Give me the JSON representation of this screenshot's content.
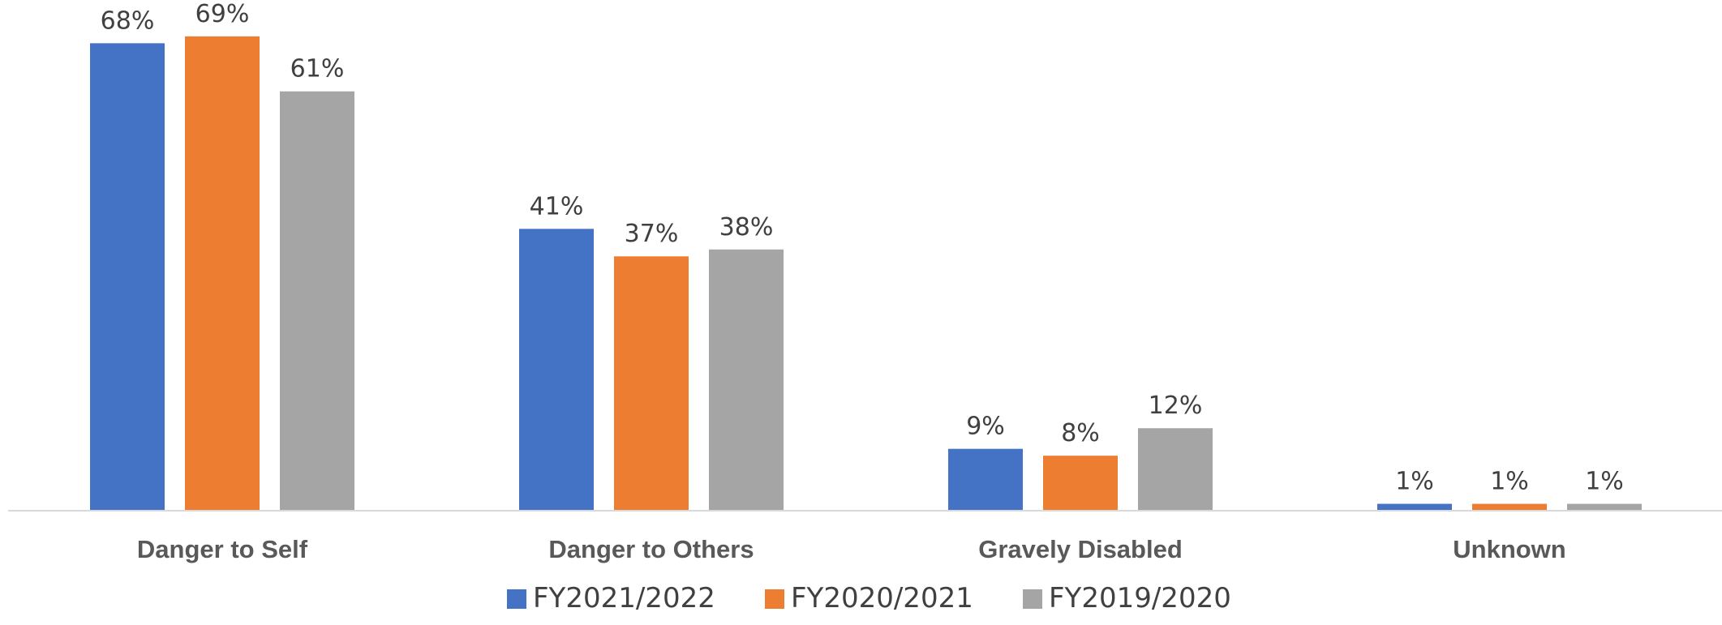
{
  "chart_data": {
    "type": "bar",
    "categories": [
      "Danger to Self",
      "Danger to Others",
      "Gravely Disabled",
      "Unknown"
    ],
    "series": [
      {
        "name": "FY2021/2022",
        "values": [
          68,
          41,
          9,
          1
        ],
        "color": "#4472C4"
      },
      {
        "name": "FY2020/2021",
        "values": [
          69,
          37,
          8,
          1
        ],
        "color": "#ED7D31"
      },
      {
        "name": "FY2019/2020",
        "values": [
          61,
          38,
          12,
          1
        ],
        "color": "#A5A5A5"
      }
    ],
    "value_suffix": "%",
    "ylim": [
      0,
      75
    ],
    "grid": false,
    "legend_position": "bottom",
    "title": "",
    "xlabel": "",
    "ylabel": ""
  }
}
